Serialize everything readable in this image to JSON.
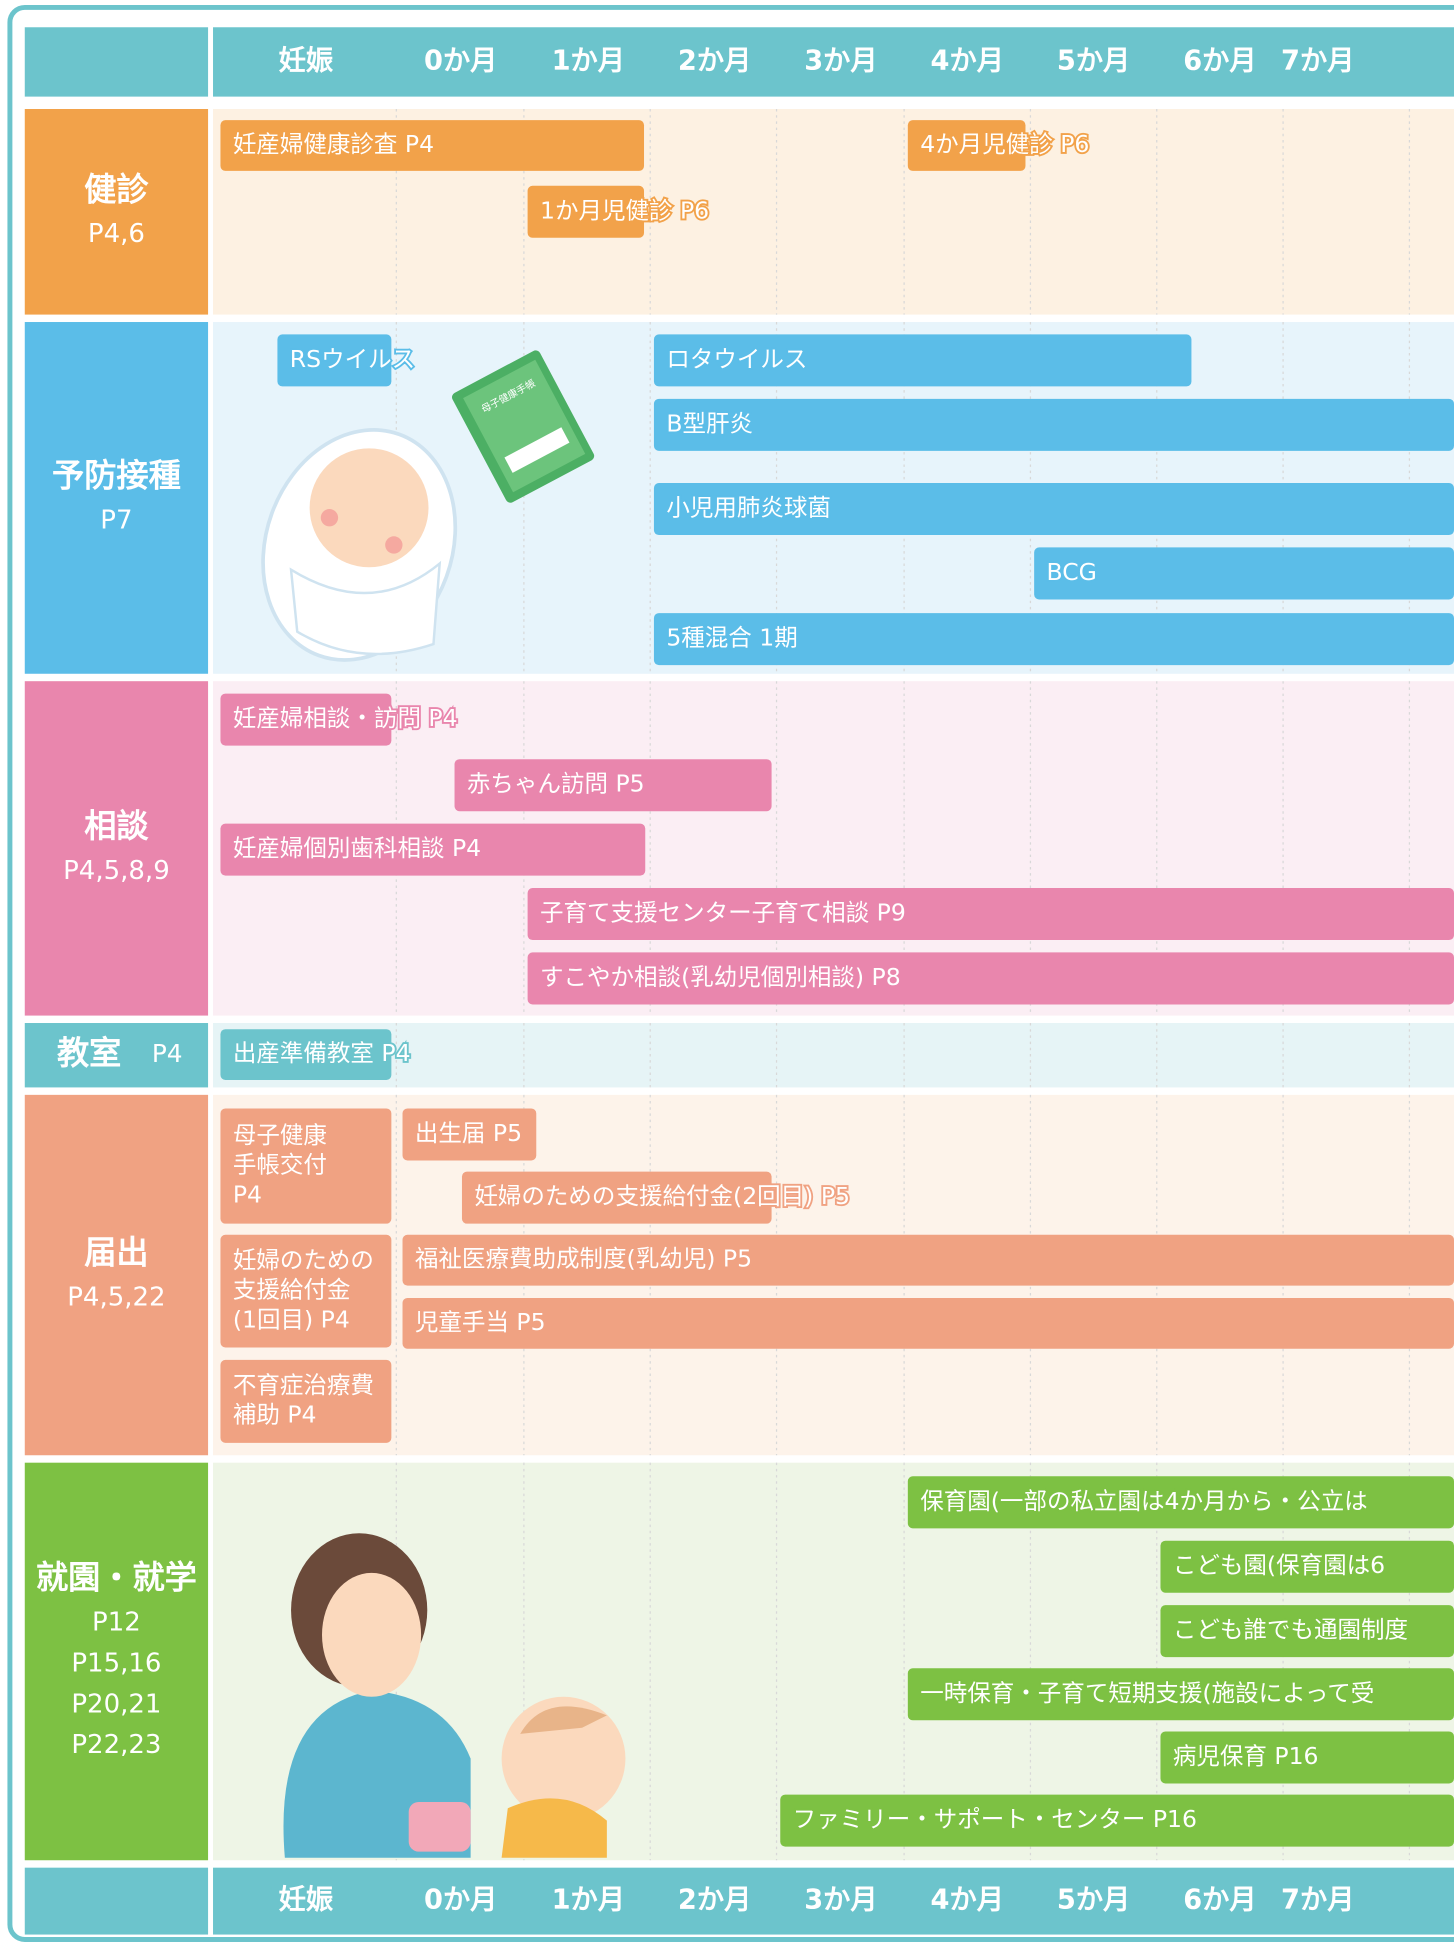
{
  "header": {
    "columns": [
      "妊娠",
      "0か月",
      "1か月",
      "2か月",
      "3か月",
      "4か月",
      "5か月",
      "6か月",
      "7か月"
    ]
  },
  "sections": [
    {
      "title": "健診",
      "pages": [
        "P4,6"
      ],
      "items": [
        {
          "lines": [
            "妊産婦健康診査 P4"
          ]
        },
        {
          "lines": [
            "4か月児健診 P6"
          ]
        },
        {
          "lines": [
            "1か月児健診 P6"
          ]
        }
      ]
    },
    {
      "title": "予防接種",
      "pages": [
        "P7"
      ],
      "items": [
        {
          "lines": [
            "RSウイルス"
          ]
        },
        {
          "lines": [
            "ロタウイルス"
          ]
        },
        {
          "lines": [
            "B型肝炎"
          ]
        },
        {
          "lines": [
            "小児用肺炎球菌"
          ]
        },
        {
          "lines": [
            "BCG"
          ]
        },
        {
          "lines": [
            "5種混合 1期"
          ]
        }
      ]
    },
    {
      "title": "相談",
      "pages": [
        "P4,5,8,9"
      ],
      "items": [
        {
          "lines": [
            "妊産婦相談・訪問 P4"
          ]
        },
        {
          "lines": [
            "赤ちゃん訪問 P5"
          ]
        },
        {
          "lines": [
            "妊産婦個別歯科相談 P4"
          ]
        },
        {
          "lines": [
            "子育て支援センター子育て相談 P9"
          ]
        },
        {
          "lines": [
            "すこやか相談(乳幼児個別相談) P8"
          ]
        }
      ]
    },
    {
      "title": "教室",
      "pages": [
        "P4"
      ],
      "items": [
        {
          "lines": [
            "出産準備教室 P4"
          ]
        }
      ]
    },
    {
      "title": "届出",
      "pages": [
        "P4,5,22"
      ],
      "items": [
        {
          "lines": [
            "母子健康",
            "手帳交付",
            "P4"
          ]
        },
        {
          "lines": [
            "出生届 P5"
          ]
        },
        {
          "lines": [
            "妊婦のための支援給付金(2回目) P5"
          ]
        },
        {
          "lines": [
            "妊婦のための",
            "支援給付金",
            "(1回目) P4"
          ]
        },
        {
          "lines": [
            "福祉医療費助成制度(乳幼児) P5"
          ]
        },
        {
          "lines": [
            "児童手当 P5"
          ]
        },
        {
          "lines": [
            "不育症治療費",
            "補助 P4"
          ]
        }
      ]
    },
    {
      "title": "就園・就学",
      "pages": [
        "P12",
        "P15,16",
        "P20,21",
        "P22,23"
      ],
      "items": [
        {
          "lines": [
            "保育園(一部の私立園は4か月から・公立は"
          ]
        },
        {
          "lines": [
            "こども園(保育園は6"
          ]
        },
        {
          "lines": [
            "こども誰でも通園制度"
          ]
        },
        {
          "lines": [
            "一時保育・子育て短期支援(施設によって受"
          ]
        },
        {
          "lines": [
            "病児保育 P16"
          ]
        },
        {
          "lines": [
            "ファミリー・サポート・センター P16"
          ]
        }
      ]
    }
  ],
  "illustration": {
    "book_label": "母子健康手帳"
  }
}
